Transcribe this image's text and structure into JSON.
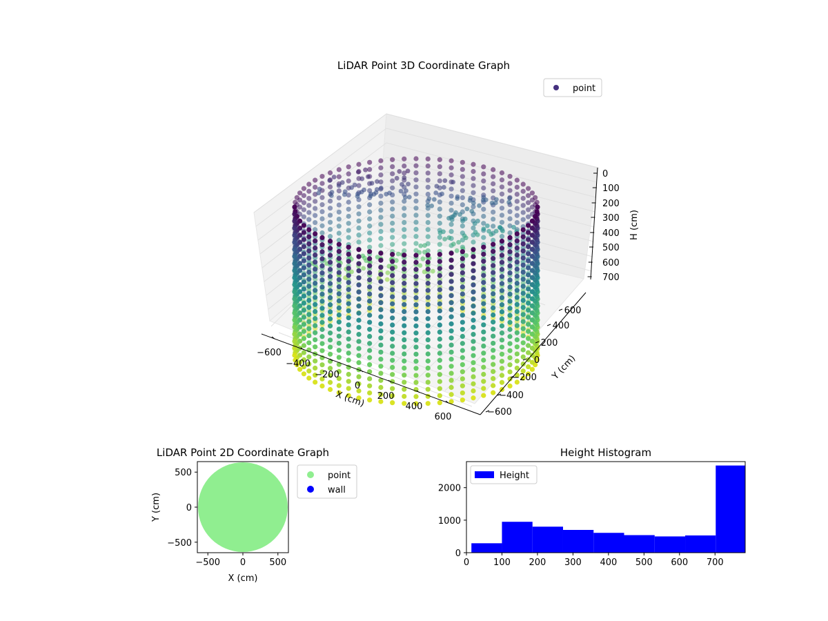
{
  "chart_data": [
    {
      "type": "scatter",
      "subtype": "3d",
      "title": "LiDAR Point 3D Coordinate Graph",
      "xlabel": "X (cm)",
      "ylabel": "Y (cm)",
      "zlabel": "H (cm)",
      "xlim": [
        -650,
        650
      ],
      "ylim": [
        -650,
        650
      ],
      "zlim": [
        750,
        0
      ],
      "xticks": [
        "−600",
        "−400",
        "−200",
        "0",
        "200",
        "400",
        "600"
      ],
      "yticks": [
        "−600",
        "−400",
        "−200",
        "0",
        "200",
        "400",
        "600"
      ],
      "zticks": [
        "0",
        "100",
        "200",
        "300",
        "400",
        "500",
        "600",
        "700"
      ],
      "colormap": "viridis",
      "grid": true,
      "legend": "top-right",
      "series": [
        {
          "name": "point",
          "color": "#45317f",
          "shape": "cylinder wall of points with extra interior scan points",
          "radius_cm": 620,
          "height_range_cm": [
            0,
            760
          ]
        }
      ]
    },
    {
      "type": "scatter",
      "title": "LiDAR Point 2D Coordinate Graph",
      "xlabel": "X (cm)",
      "ylabel": "Y (cm)",
      "xlim": [
        -650,
        650
      ],
      "ylim": [
        -650,
        650
      ],
      "xticks": [
        "−500",
        "0",
        "500"
      ],
      "yticks": [
        "−500",
        "0",
        "500"
      ],
      "legend": "outside-right",
      "series": [
        {
          "name": "point",
          "color": "#90ee90",
          "shape": "filled disk",
          "radius_cm": 640
        },
        {
          "name": "wall",
          "color": "#0000ff",
          "values": []
        }
      ]
    },
    {
      "type": "bar",
      "subtype": "histogram",
      "title": "Height Histogram",
      "xlim": [
        0,
        785
      ],
      "ylim": [
        0,
        2800
      ],
      "xticks": [
        "0",
        "100",
        "200",
        "300",
        "400",
        "500",
        "600",
        "700"
      ],
      "yticks": [
        "0",
        "1000",
        "2000"
      ],
      "legend": "top-left",
      "series": [
        {
          "name": "Height",
          "color": "#0000ff",
          "bin_edges": [
            14,
            100,
            186,
            272,
            358,
            444,
            530,
            616,
            702,
            785
          ],
          "values": [
            290,
            950,
            800,
            700,
            610,
            540,
            500,
            530,
            2680
          ]
        }
      ]
    }
  ]
}
